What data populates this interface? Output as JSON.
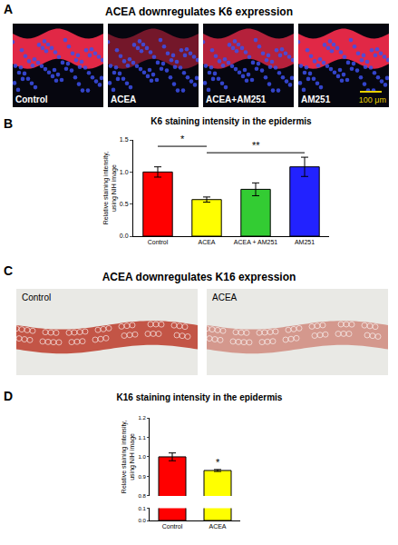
{
  "figure": {
    "panels": [
      {
        "letter": "A",
        "title": "ACEA downregulates K6 expression",
        "images": [
          "Control",
          "ACEA",
          "ACEA+AM251",
          "AM251"
        ],
        "scale_bar": "100 μm"
      },
      {
        "letter": "C",
        "title": "ACEA downregulates K16 expression",
        "images": [
          "Control",
          "ACEA"
        ]
      }
    ]
  },
  "chart_data": [
    {
      "panel": "B",
      "type": "bar",
      "title": "K6 staining intensity in the epidermis",
      "ylabel": [
        "Relative staining intensity,",
        "using NIH image"
      ],
      "categories": [
        "Control",
        "ACEA",
        "ACEA + AM251",
        "AM251"
      ],
      "values": [
        1.0,
        0.57,
        0.73,
        1.08
      ],
      "errors": [
        0.08,
        0.04,
        0.1,
        0.15
      ],
      "colors": [
        "#ff0000",
        "#ffff00",
        "#33cc33",
        "#2222ff"
      ],
      "ylim": [
        0,
        1.5
      ],
      "yticks": [
        {
          "value": 0,
          "label": "0.0"
        },
        0.5,
        {
          "value": 1,
          "label": "1.0"
        },
        1.5
      ],
      "grid": false,
      "significance": [
        {
          "from": "Control",
          "to": "ACEA",
          "y": 1.4,
          "label": "*"
        },
        {
          "from": "ACEA",
          "to": "AM251",
          "y": 1.3,
          "label": "**"
        }
      ]
    },
    {
      "panel": "D",
      "type": "bar",
      "title": "K16 staining intensity in the epidermis",
      "ylabel": [
        "Relative staining intensity,",
        "using NIH image"
      ],
      "categories": [
        "Control",
        "ACEA"
      ],
      "values": [
        1.0,
        0.93
      ],
      "errors": [
        0.02,
        0.005
      ],
      "colors": [
        "#ff0000",
        "#ffff00"
      ],
      "ylim": [
        [
          0,
          0.1
        ],
        [
          0.8,
          1.2
        ]
      ],
      "yticks": [
        [
          {
            "value": 0,
            "label": "0.0"
          },
          0.1
        ],
        [
          0.8,
          0.9,
          {
            "value": 1,
            "label": "1.0"
          },
          1.1,
          1.2
        ]
      ],
      "grid": false,
      "significance": [
        {
          "category": "ACEA",
          "label": "*"
        }
      ]
    }
  ]
}
